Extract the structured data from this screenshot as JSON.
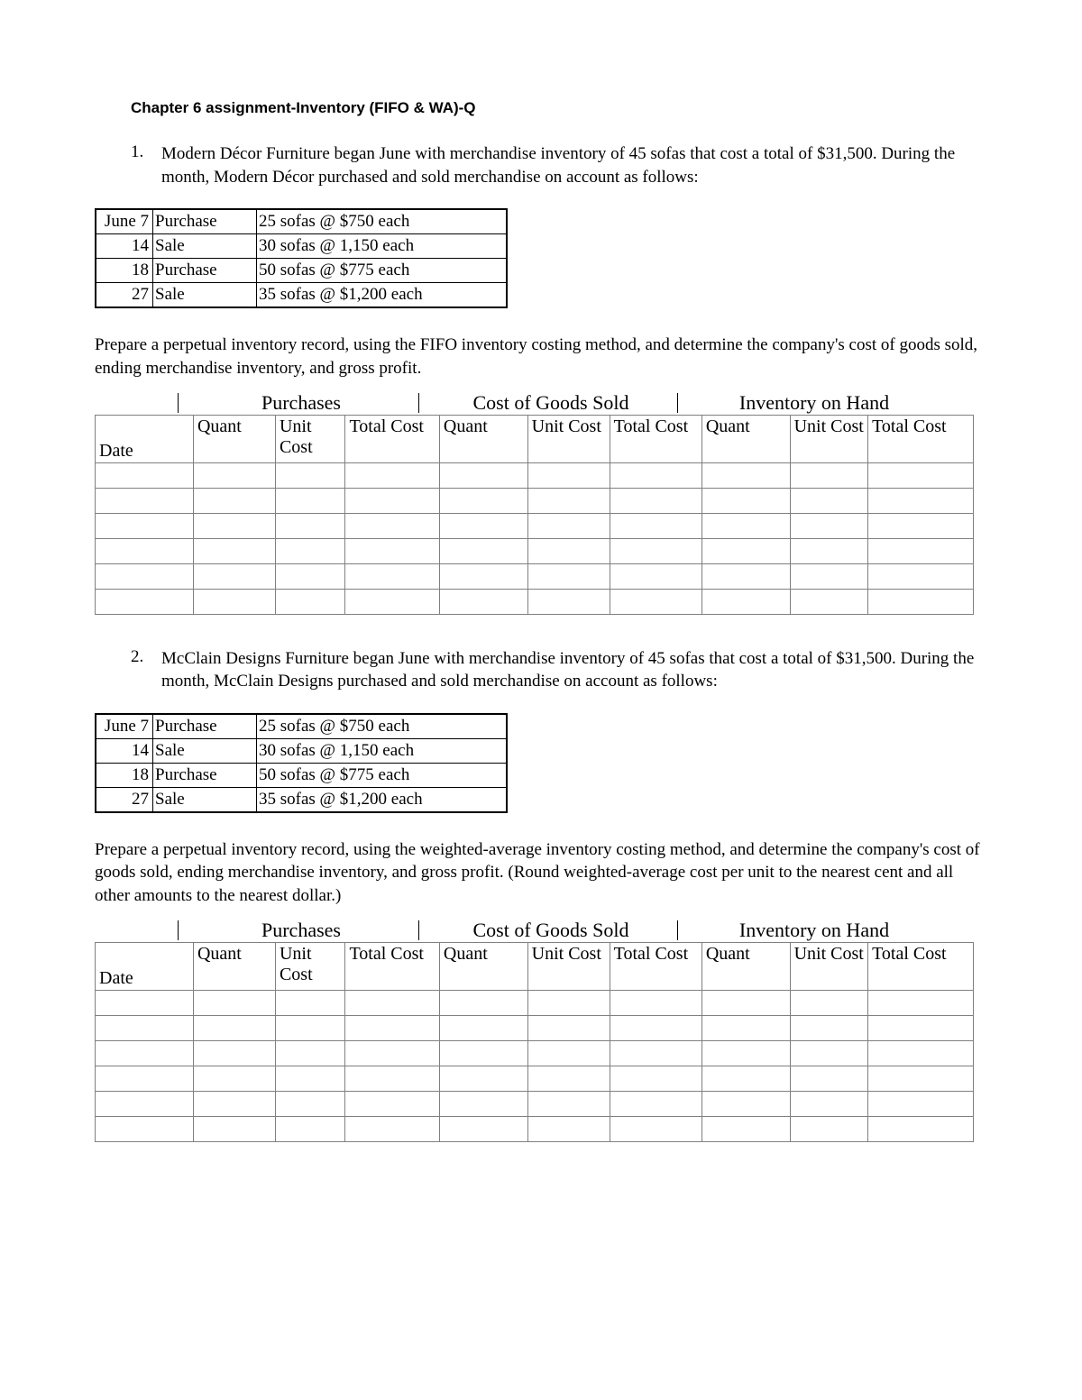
{
  "title": "Chapter 6 assignment-Inventory (FIFO & WA)-Q",
  "q1": {
    "number": "1.",
    "text": "Modern Décor Furniture began June with merchandise inventory of 45 sofas that cost a total of $31,500.  During the month, Modern Décor purchased and sold merchandise on account as follows:",
    "transactions": [
      {
        "date": "June 7",
        "event": "Purchase",
        "detail": "25 sofas @ $750 each"
      },
      {
        "date": "14",
        "event": "Sale",
        "detail": "30 sofas @ 1,150 each"
      },
      {
        "date": "18",
        "event": "Purchase",
        "detail": "50 sofas @ $775 each"
      },
      {
        "date": "27",
        "event": "Sale",
        "detail": "35 sofas @ $1,200 each"
      }
    ],
    "instruction": "Prepare a perpetual inventory record, using the FIFO inventory costing method, and determine the company's cost of goods sold, ending merchandise inventory, and gross profit."
  },
  "q2": {
    "number": "2.",
    "text": "McClain Designs Furniture began June with merchandise inventory of 45 sofas that cost a total of $31,500.  During the month, McClain Designs purchased and sold merchandise on account as follows:",
    "transactions": [
      {
        "date": "June 7",
        "event": "Purchase",
        "detail": "25 sofas @ $750 each"
      },
      {
        "date": "14",
        "event": "Sale",
        "detail": "30 sofas @ 1,150 each"
      },
      {
        "date": "18",
        "event": "Purchase",
        "detail": "50 sofas @ $775 each"
      },
      {
        "date": "27",
        "event": "Sale",
        "detail": "35 sofas @ $1,200 each"
      }
    ],
    "instruction": "Prepare a perpetual inventory record, using the weighted-average inventory costing method, and determine the company's cost of goods sold, ending merchandise inventory, and gross profit. (Round weighted-average cost per unit to the nearest cent and all other amounts to the nearest dollar.)"
  },
  "worksheet": {
    "group1": "Purchases",
    "group2": "Cost of Goods Sold",
    "group3": "Inventory on Hand",
    "headers": {
      "date": "Date",
      "quant": "Quant",
      "unit": "Unit Cost",
      "total": "Total Cost"
    },
    "blank_rows": 6
  }
}
